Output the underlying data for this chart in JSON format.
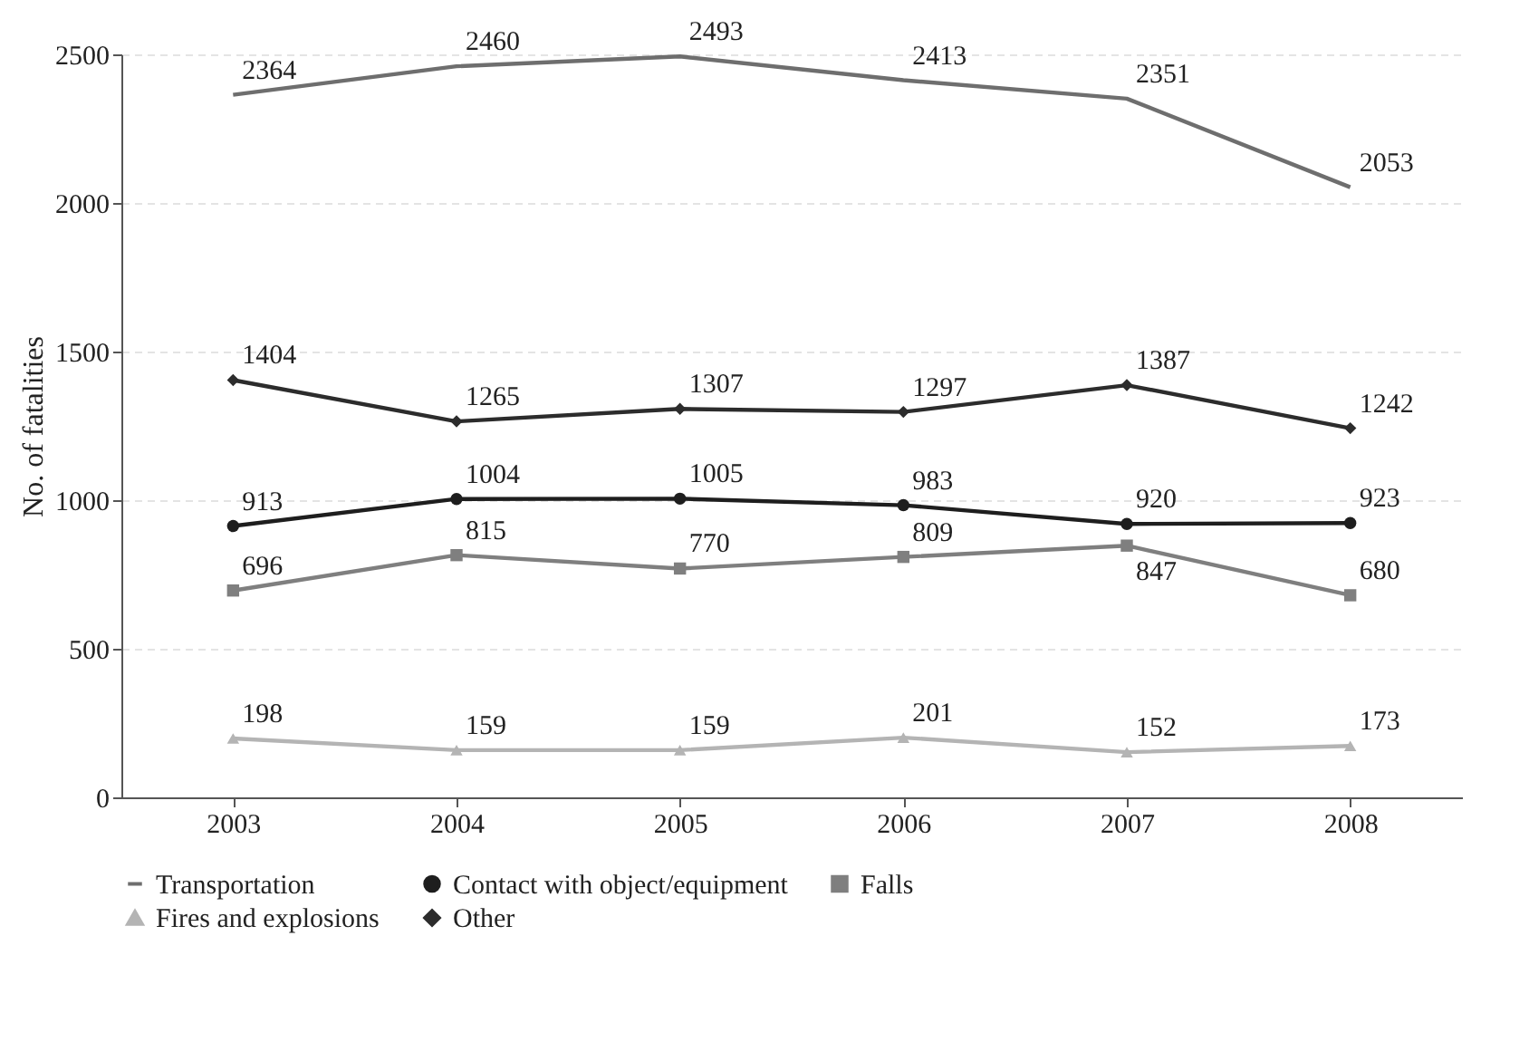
{
  "chart_data": {
    "type": "line",
    "ylabel": "No. of fatalities",
    "categories": [
      "2003",
      "2004",
      "2005",
      "2006",
      "2007",
      "2008"
    ],
    "series": [
      {
        "name": "Transportation",
        "color": "#6e6e6e",
        "marker": "none",
        "values": [
          2364,
          2460,
          2493,
          2413,
          2351,
          2053
        ]
      },
      {
        "name": "Contact with object/equipment",
        "color": "#1e1e1e",
        "marker": "circle",
        "values": [
          913,
          1004,
          1005,
          983,
          920,
          923
        ]
      },
      {
        "name": "Falls",
        "color": "#7f7f7f",
        "marker": "square",
        "values": [
          696,
          815,
          770,
          809,
          847,
          680
        ]
      },
      {
        "name": "Fires and explosions",
        "color": "#b4b4b4",
        "marker": "triangle",
        "values": [
          198,
          159,
          159,
          201,
          152,
          173
        ]
      },
      {
        "name": "Other",
        "color": "#2c2c2c",
        "marker": "diamond",
        "values": [
          1404,
          1265,
          1307,
          1297,
          1387,
          1242
        ]
      }
    ],
    "ylim": [
      0,
      2500
    ],
    "yticks": [
      0,
      500,
      1000,
      1500,
      2000,
      2500
    ],
    "grid": "y",
    "legend": "bottom",
    "data_labels": true
  }
}
